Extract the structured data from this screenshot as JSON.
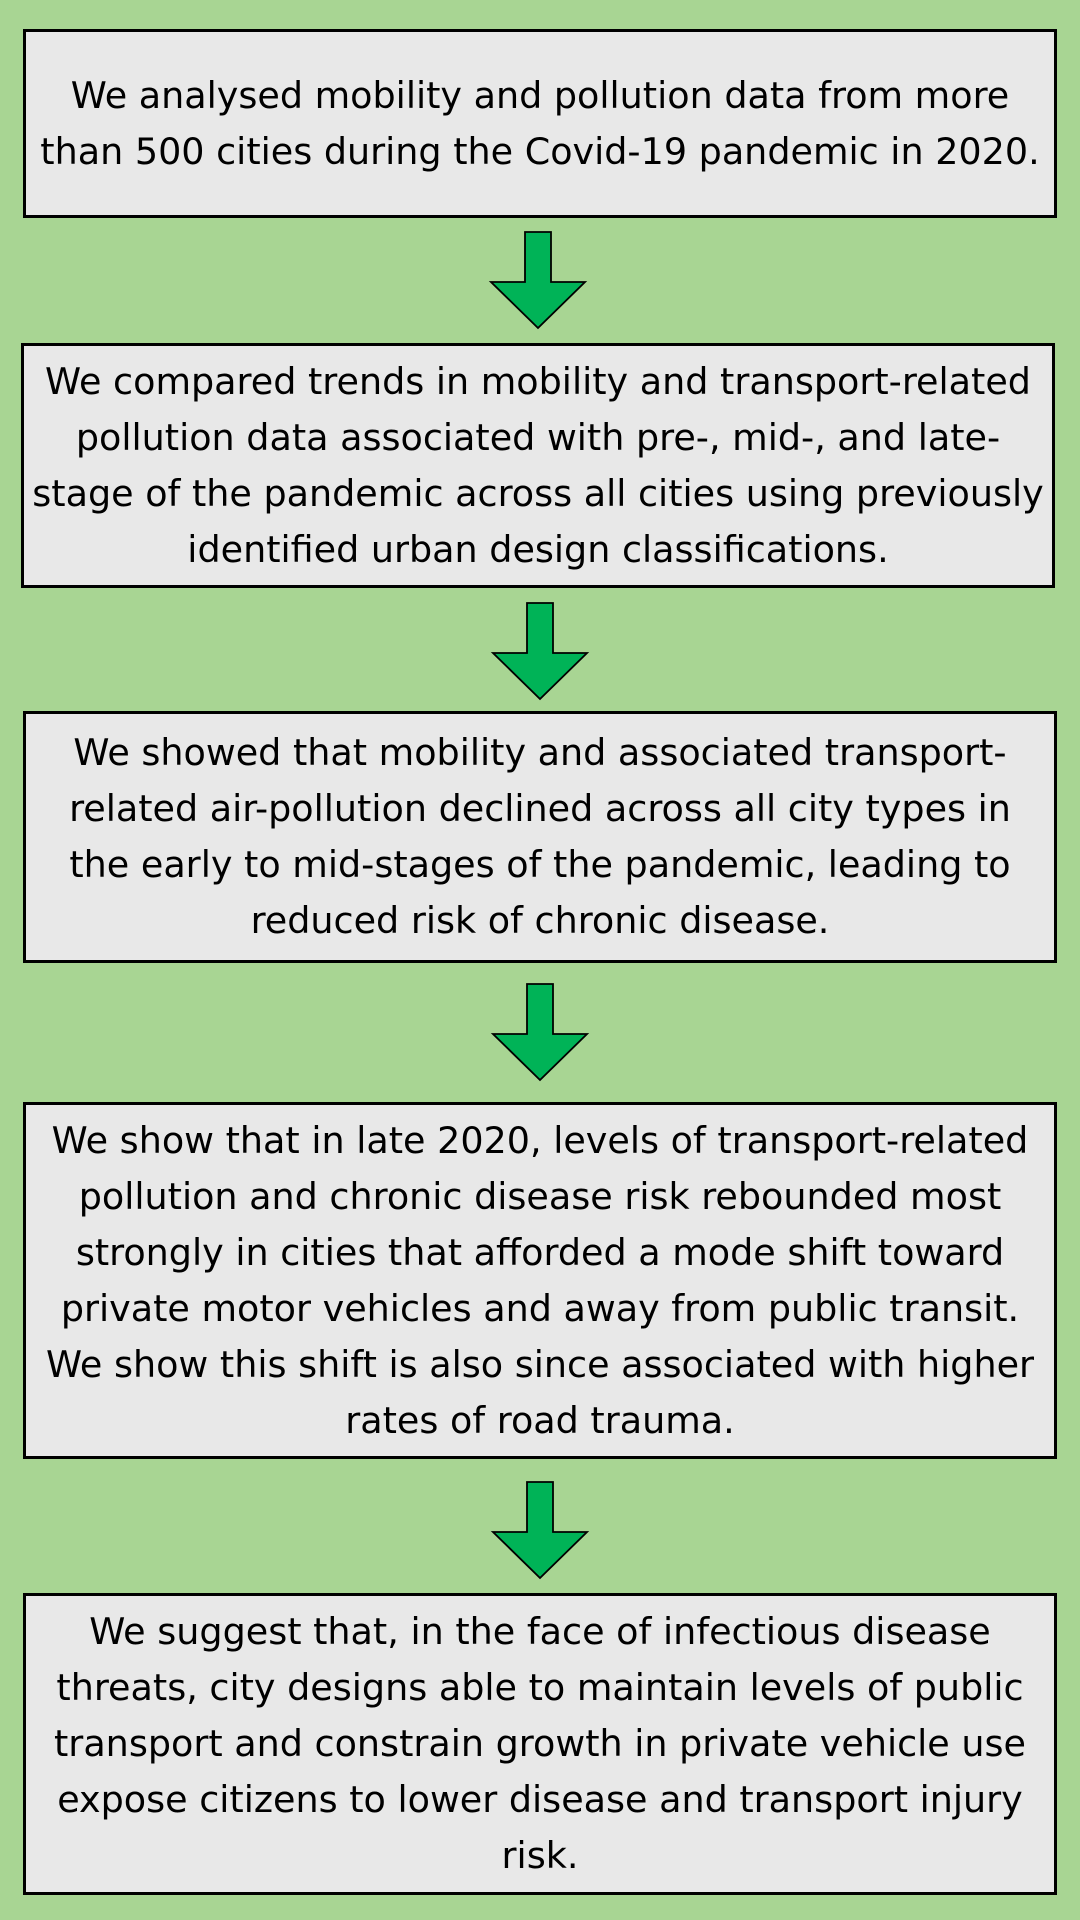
{
  "colors": {
    "background": "#a8d593",
    "box_fill": "#e8e8e8",
    "box_border": "#000000",
    "arrow_fill": "#00b357",
    "text": "#000000"
  },
  "steps": [
    {
      "text": "We analysed mobility and pollution data from more than 500 cities during the Covid-19 pandemic in 2020."
    },
    {
      "text": "We compared trends in mobility and transport-related pollution data associated with pre-, mid-, and late-stage of the pandemic across all cities using previously identified urban design classifications."
    },
    {
      "text": "We showed that mobility and associated transport-related air-pollution declined across all city types in the early to mid-stages of the pandemic, leading to reduced risk of chronic disease."
    },
    {
      "text": "We show that in late 2020, levels of transport-related pollution and chronic disease risk rebounded most strongly in cities that afforded a mode shift toward private motor vehicles and away from public transit. We show this shift is also since associated with higher rates of road trauma."
    },
    {
      "text": "We suggest that, in the face of infectious disease threats, city designs able to maintain levels of public transport and constrain growth in private vehicle use expose citizens to lower disease and transport injury risk."
    }
  ],
  "connectors": [
    {
      "icon": "down-arrow-icon"
    },
    {
      "icon": "down-arrow-icon"
    },
    {
      "icon": "down-arrow-icon"
    },
    {
      "icon": "down-arrow-icon"
    }
  ]
}
